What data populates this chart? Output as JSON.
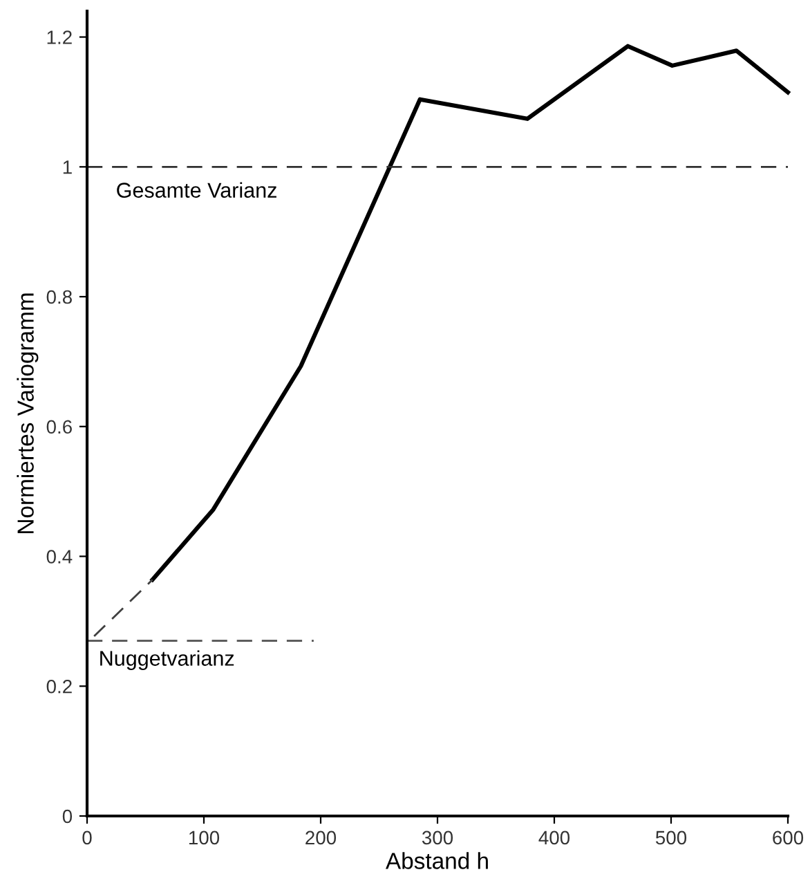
{
  "chart_data": {
    "type": "line",
    "xlabel": "Abstand h",
    "ylabel": "Normiertes Variogramm",
    "series": [
      {
        "color": "#000000",
        "x": [
          56,
          108,
          183,
          285,
          377,
          463,
          501,
          556,
          600
        ],
        "values": [
          0.364,
          0.472,
          0.693,
          1.104,
          1.074,
          1.186,
          1.156,
          1.179,
          1.115
        ]
      },
      {
        "color": "#404040",
        "line_style": "dashed",
        "x": [
          6,
          56
        ],
        "values": [
          0.277,
          0.364
        ]
      },
      {
        "color": "#505050",
        "line_style": "dashed",
        "x": [
          0,
          194
        ],
        "values": [
          0.27,
          0.27
        ]
      }
    ],
    "ref_lines": [
      {
        "axis": "y",
        "value": 1,
        "label": "Gesamte Varianz",
        "color": "#303030",
        "line_style": "dashed"
      }
    ],
    "annotations": [
      {
        "text": "Nuggetvarianz",
        "x": 0,
        "y": 0.27
      }
    ],
    "xlim": [
      0,
      600
    ],
    "xticks": [
      0,
      100,
      200,
      300,
      400,
      500,
      600
    ],
    "ylim": [
      0,
      1.24
    ],
    "yticks": [
      0,
      0.2,
      0.4,
      0.6,
      0.8,
      1,
      1.2
    ],
    "grid": false,
    "legend": false,
    "marker": "none"
  }
}
